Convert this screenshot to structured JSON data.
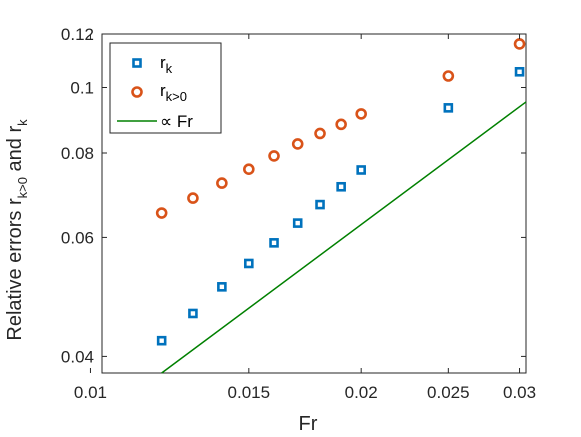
{
  "chart_data": {
    "type": "scatter",
    "x_scale": "log",
    "y_scale": "log",
    "xlim": [
      0.0103,
      0.0305
    ],
    "ylim": [
      0.0378,
      0.12
    ],
    "xticks": [
      {
        "value": 0.01,
        "label": "0.01"
      },
      {
        "value": 0.015,
        "label": "0.015"
      },
      {
        "value": 0.02,
        "label": "0.02"
      },
      {
        "value": 0.025,
        "label": "0.025"
      },
      {
        "value": 0.03,
        "label": "0.03"
      }
    ],
    "yticks": [
      {
        "value": 0.04,
        "label": "0.04"
      },
      {
        "value": 0.06,
        "label": "0.06"
      },
      {
        "value": 0.08,
        "label": "0.08"
      },
      {
        "value": 0.1,
        "label": "0.1"
      },
      {
        "value": 0.12,
        "label": "0.12"
      }
    ],
    "xlabel": "Fr",
    "ylabel": {
      "part1": "Relative errors r",
      "sub1": "k>0",
      "part2": " and r",
      "sub2": "k"
    },
    "grid": false,
    "legend_position": "top-left",
    "series": [
      {
        "name": "r",
        "name_sub": "k",
        "marker": "square",
        "color": "#0072BD",
        "x": [
          0.012,
          0.013,
          0.014,
          0.015,
          0.016,
          0.017,
          0.018,
          0.019,
          0.02,
          0.025,
          0.03
        ],
        "y": [
          0.0422,
          0.0463,
          0.0507,
          0.0549,
          0.0589,
          0.063,
          0.0671,
          0.0713,
          0.0755,
          0.0933,
          0.1055
        ]
      },
      {
        "name": "r",
        "name_sub": "k>0",
        "marker": "circle",
        "color": "#D95319",
        "x": [
          0.012,
          0.013,
          0.014,
          0.015,
          0.016,
          0.017,
          0.018,
          0.019,
          0.02,
          0.025,
          0.03
        ],
        "y": [
          0.0652,
          0.0686,
          0.0722,
          0.0757,
          0.0792,
          0.0825,
          0.0855,
          0.0882,
          0.0914,
          0.104,
          0.116
        ]
      },
      {
        "name": "∝ Fr",
        "marker": "line",
        "color": "#008000",
        "x": [
          0.012,
          0.0305
        ],
        "y": [
          0.0378,
          0.0952
        ]
      }
    ]
  }
}
